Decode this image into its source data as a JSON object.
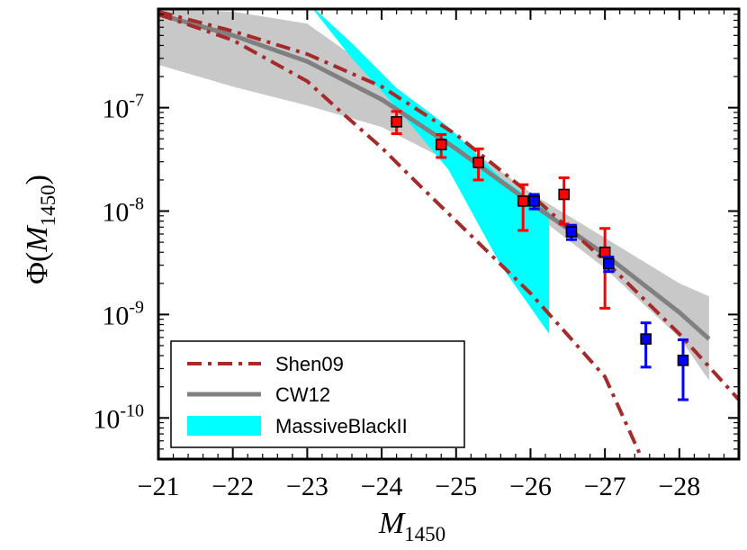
{
  "chart_data": {
    "type": "scatter",
    "xlabel": {
      "base": "M",
      "sub": "1450"
    },
    "ylabel": {
      "prefix": "Φ(",
      "base": "M",
      "sub": "1450",
      "suffix": ")"
    },
    "xlim": [
      -21,
      -28.8
    ],
    "ylim": [
      4e-11,
      9e-07
    ],
    "yscale": "log",
    "xticks": [
      -21,
      -22,
      -23,
      -24,
      -25,
      -26,
      -27,
      -28
    ],
    "xtick_labels": [
      "−21",
      "−22",
      "−23",
      "−24",
      "−25",
      "−26",
      "−27",
      "−28"
    ],
    "yticks": [
      {
        "value": 1e-07,
        "base": "10",
        "exp": "-7"
      },
      {
        "value": 1e-08,
        "base": "10",
        "exp": "-8"
      },
      {
        "value": 1e-09,
        "base": "10",
        "exp": "-9"
      },
      {
        "value": 1e-10,
        "base": "10",
        "exp": "-10"
      }
    ],
    "legend": {
      "position": "lower-left",
      "entries": [
        {
          "label": "Shen09",
          "style": "dashdot",
          "color": "#a52a2a"
        },
        {
          "label": "CW12",
          "style": "solid",
          "color": "#808080"
        },
        {
          "label": "MassiveBlackII",
          "style": "fill",
          "color": "#00ffff"
        }
      ]
    },
    "colors": {
      "shen": "#a52a2a",
      "cw": "#808080",
      "cw_band": "#c8c8c8",
      "mb": "#00ffff",
      "red": "#ff0000",
      "blue": "#0000ff"
    },
    "shen09_upper": {
      "x": [
        -21.0,
        -22.0,
        -23.0,
        -24.0,
        -25.0,
        -26.0,
        -27.0,
        -28.0,
        -28.8
      ],
      "y": [
        8.5e-07,
        5.5e-07,
        3.3e-07,
        1.6e-07,
        5.5e-08,
        1.45e-08,
        3.3e-09,
        6.5e-10,
        1.5e-10
      ]
    },
    "shen09_lower": {
      "x": [
        -21.0,
        -22.0,
        -23.0,
        -23.5,
        -24.0,
        -24.5,
        -25.0,
        -26.0,
        -27.0,
        -27.5
      ],
      "y": [
        8e-07,
        4.5e-07,
        1.8e-07,
        8.5e-08,
        4.1e-08,
        1.8e-08,
        8e-09,
        1.6e-09,
        2.5e-10,
        4e-11
      ]
    },
    "cw12_line": {
      "x": [
        -21.0,
        -22.0,
        -23.0,
        -24.0,
        -25.0,
        -26.0,
        -27.0,
        -28.0,
        -28.4
      ],
      "y": [
        8e-07,
        5e-07,
        2.8e-07,
        1.2e-07,
        4e-08,
        1.2e-08,
        3.8e-09,
        1.05e-09,
        5.8e-10
      ]
    },
    "cw12_band": {
      "x": [
        -21.0,
        -22.0,
        -23.0,
        -24.0,
        -25.0,
        -26.0,
        -27.0,
        -28.0,
        -28.4
      ],
      "upper": [
        9e-07,
        8.5e-07,
        6.5e-07,
        2e-07,
        5e-08,
        1.5e-08,
        5.5e-09,
        2e-09,
        1.5e-09
      ],
      "lower": [
        2.6e-07,
        1.6e-07,
        1.05e-07,
        6.5e-08,
        2.8e-08,
        1e-08,
        2.8e-09,
        6e-10,
        2.3e-10
      ]
    },
    "massiveblack_band": {
      "x": [
        -23.0,
        -23.6,
        -24.2,
        -24.9,
        -25.6,
        -26.25
      ],
      "upper": [
        1.05e-06,
        4.2e-07,
        1.55e-07,
        6.5e-08,
        2.1e-08,
        1e-08
      ],
      "lower": [
        1.05e-06,
        3e-07,
        1e-07,
        2.5e-08,
        3e-09,
        6.5e-10
      ]
    },
    "series": [
      {
        "name": "red points",
        "color": "#ff0000",
        "points": [
          {
            "x": -24.2,
            "y": 7.3e-08,
            "lo": 5.6e-08,
            "hi": 9.2e-08
          },
          {
            "x": -24.8,
            "y": 4.4e-08,
            "lo": 3.3e-08,
            "hi": 5.5e-08
          },
          {
            "x": -25.3,
            "y": 2.95e-08,
            "lo": 2e-08,
            "hi": 4e-08
          },
          {
            "x": -25.9,
            "y": 1.25e-08,
            "lo": 6.5e-09,
            "hi": 1.8e-08
          },
          {
            "x": -26.45,
            "y": 1.45e-08,
            "lo": 7.5e-09,
            "hi": 2.1e-08
          },
          {
            "x": -27.0,
            "y": 4e-09,
            "lo": 1.15e-09,
            "hi": 6.8e-09
          }
        ]
      },
      {
        "name": "blue points",
        "color": "#0000ff",
        "points": [
          {
            "x": -26.05,
            "y": 1.25e-08,
            "lo": 1.05e-08,
            "hi": 1.45e-08
          },
          {
            "x": -26.55,
            "y": 6.3e-09,
            "lo": 5.3e-09,
            "hi": 7.3e-09
          },
          {
            "x": -27.05,
            "y": 3.1e-09,
            "lo": 2.6e-09,
            "hi": 3.6e-09
          },
          {
            "x": -27.55,
            "y": 5.8e-10,
            "lo": 3.1e-10,
            "hi": 8.3e-10
          },
          {
            "x": -28.05,
            "y": 3.6e-10,
            "lo": 1.5e-10,
            "hi": 5.7e-10
          }
        ]
      }
    ]
  }
}
